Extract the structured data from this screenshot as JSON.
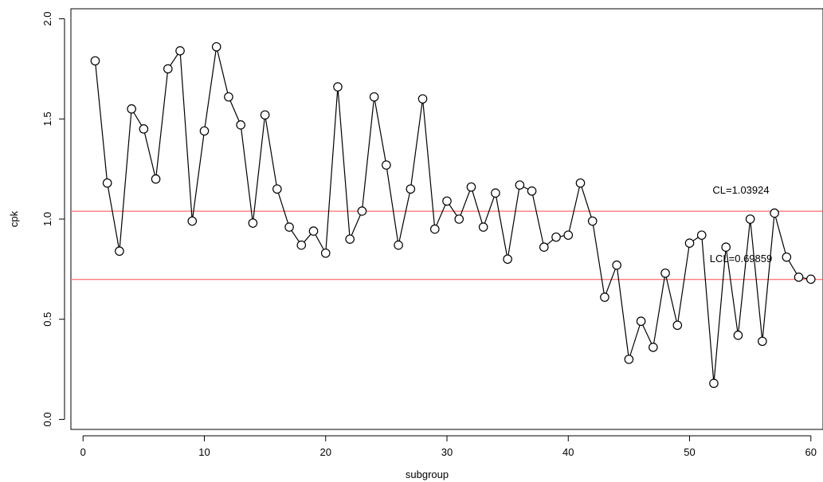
{
  "chart_data": {
    "type": "line",
    "xlabel": "subgroup",
    "ylabel": "cpk",
    "xlim": [
      -1,
      61
    ],
    "ylim": [
      -0.05,
      2.05
    ],
    "x_ticks": [
      0,
      10,
      20,
      30,
      40,
      50,
      60
    ],
    "y_ticks": [
      0.0,
      0.5,
      1.0,
      1.5,
      2.0
    ],
    "x_tick_labels": [
      "0",
      "10",
      "20",
      "30",
      "40",
      "50",
      "60"
    ],
    "y_tick_labels": [
      "0.0",
      "0.5",
      "1.0",
      "1.5",
      "2.0"
    ],
    "grid": false,
    "series": [
      {
        "marker": "open-circle",
        "line_color": "#000000",
        "x": [
          1,
          2,
          3,
          4,
          5,
          6,
          7,
          8,
          9,
          10,
          11,
          12,
          13,
          14,
          15,
          16,
          17,
          18,
          19,
          20,
          21,
          22,
          23,
          24,
          25,
          26,
          27,
          28,
          29,
          30,
          31,
          32,
          33,
          34,
          35,
          36,
          37,
          38,
          39,
          40,
          41,
          42,
          43,
          44,
          45,
          46,
          47,
          48,
          49,
          50,
          51,
          52,
          53,
          54,
          55,
          56,
          57,
          58,
          59,
          60
        ],
        "values": [
          1.79,
          1.18,
          0.84,
          1.55,
          1.45,
          1.2,
          1.75,
          1.84,
          0.99,
          1.44,
          1.86,
          1.61,
          1.47,
          0.98,
          1.52,
          1.15,
          0.96,
          0.87,
          0.94,
          0.83,
          1.66,
          0.9,
          1.04,
          1.61,
          1.27,
          0.87,
          1.15,
          1.6,
          0.95,
          1.09,
          1.0,
          1.16,
          0.96,
          1.13,
          0.8,
          1.17,
          1.14,
          0.86,
          0.91,
          0.92,
          1.18,
          0.99,
          0.61,
          0.77,
          0.3,
          0.49,
          0.36,
          0.73,
          0.47,
          0.88,
          0.92,
          0.18,
          0.86,
          0.42,
          1.0,
          0.39,
          1.03,
          0.81,
          0.71,
          0.7
        ]
      }
    ],
    "reference_lines": [
      {
        "name": "CL",
        "value": 1.03924,
        "label": "CL=1.03924",
        "color": "#ff6b6b"
      },
      {
        "name": "LCL",
        "value": 0.69859,
        "label": "LCL=0.69859",
        "color": "#ff6b6b"
      }
    ]
  }
}
